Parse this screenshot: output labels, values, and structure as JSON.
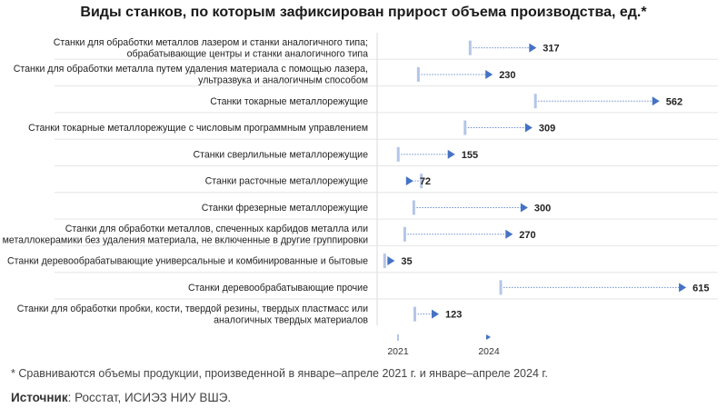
{
  "title": "Виды станков, по которым зафиксирован прирост объема производства, ед.*",
  "footnote": "* Сравниваются объемы продукции, произведенной в январе–апреле 2021 г. и январе–апреле 2024 г.",
  "source_label": "Источник",
  "source_text": ": Росстат, ИСИЭЗ НИУ ВШЭ.",
  "colors": {
    "marker_2021": "#b4c6e7",
    "marker_2024": "#4472c4",
    "connector": "#6f8fd0"
  },
  "chart_data": {
    "type": "dot-arrow",
    "title": "Виды станков, по которым зафиксирован прирост объема производства, ед.*",
    "series": [
      {
        "name": "2021",
        "values": [
          185,
          82,
          315,
          175,
          42,
          88,
          73,
          55,
          15,
          246,
          75
        ]
      },
      {
        "name": "2024",
        "values": [
          317,
          230,
          562,
          309,
          155,
          72,
          300,
          270,
          35,
          615,
          123
        ]
      }
    ],
    "categories": [
      [
        "Станки для обработки металлов лазером и станки аналогичного типа;",
        "обрабатывающие центры и станки аналогичного типа"
      ],
      [
        "Станки для обработки металла путем удаления материала с помощью лазера,",
        "ультразвука и аналогичным способом"
      ],
      [
        "Станки токарные металлорежущие"
      ],
      [
        "Станки токарные металлорежущие с числовым программным управлением"
      ],
      [
        "Станки сверлильные металлорежущие"
      ],
      [
        "Станки расточные металлорежущие"
      ],
      [
        "Станки фрезерные металлорежущие"
      ],
      [
        "Станки для обработки металлов, спеченных карбидов металла или",
        "металлокерамики без удаления материала, не включенные в другие группировки"
      ],
      [
        "Станки деревообрабатывающие универсальные и комбинированные и бытовые"
      ],
      [
        "Станки деревообрабатывающие прочие"
      ],
      [
        "Станки для обработки пробки, кости, твердой резины, твердых пластмасс или",
        "аналогичных твердых материалов"
      ]
    ],
    "data_labels": [
      "317",
      "230",
      "562",
      "309",
      "155",
      "72",
      "300",
      "270",
      "35",
      "615",
      "123"
    ],
    "legend": {
      "items": [
        "2021",
        "2024"
      ],
      "position": "bottom"
    },
    "xlim": [
      0,
      650
    ]
  }
}
